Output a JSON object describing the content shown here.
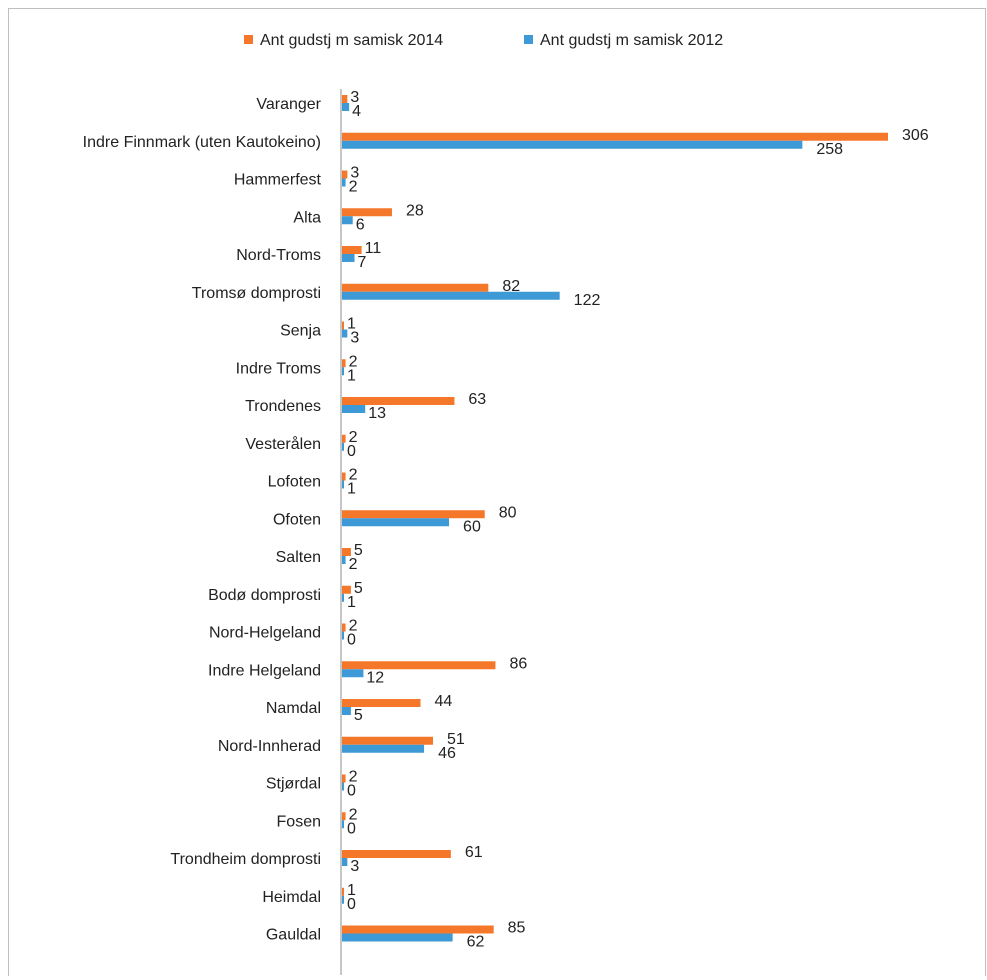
{
  "chart_data": {
    "type": "bar",
    "orientation": "horizontal",
    "title": "",
    "xlabel": "",
    "ylabel": "",
    "xlim": [
      0,
      306
    ],
    "grid": false,
    "legend_position": "top",
    "categories": [
      "Varanger",
      "Indre Finnmark (uten Kautokeino)",
      "Hammerfest",
      "Alta",
      "Nord-Troms",
      "Tromsø domprosti",
      "Senja",
      "Indre Troms",
      "Trondenes",
      "Vesterålen",
      "Lofoten",
      "Ofoten",
      "Salten",
      "Bodø domprosti",
      "Nord-Helgeland",
      "Indre Helgeland",
      "Namdal",
      "Nord-Innherad",
      "Stjørdal",
      "Fosen",
      "Trondheim domprosti",
      "Heimdal",
      "Gauldal"
    ],
    "series": [
      {
        "name": "Ant gudstj m samisk 2014",
        "color": "#f5782a",
        "values": [
          3,
          306,
          3,
          28,
          11,
          82,
          1,
          2,
          63,
          2,
          2,
          80,
          5,
          5,
          2,
          86,
          44,
          51,
          2,
          2,
          61,
          1,
          85
        ]
      },
      {
        "name": "Ant gudstj m samisk 2012",
        "color": "#3d9ad6",
        "values": [
          4,
          258,
          2,
          6,
          7,
          122,
          3,
          1,
          13,
          0,
          1,
          60,
          2,
          1,
          0,
          12,
          5,
          46,
          0,
          0,
          3,
          0,
          62
        ]
      }
    ]
  }
}
